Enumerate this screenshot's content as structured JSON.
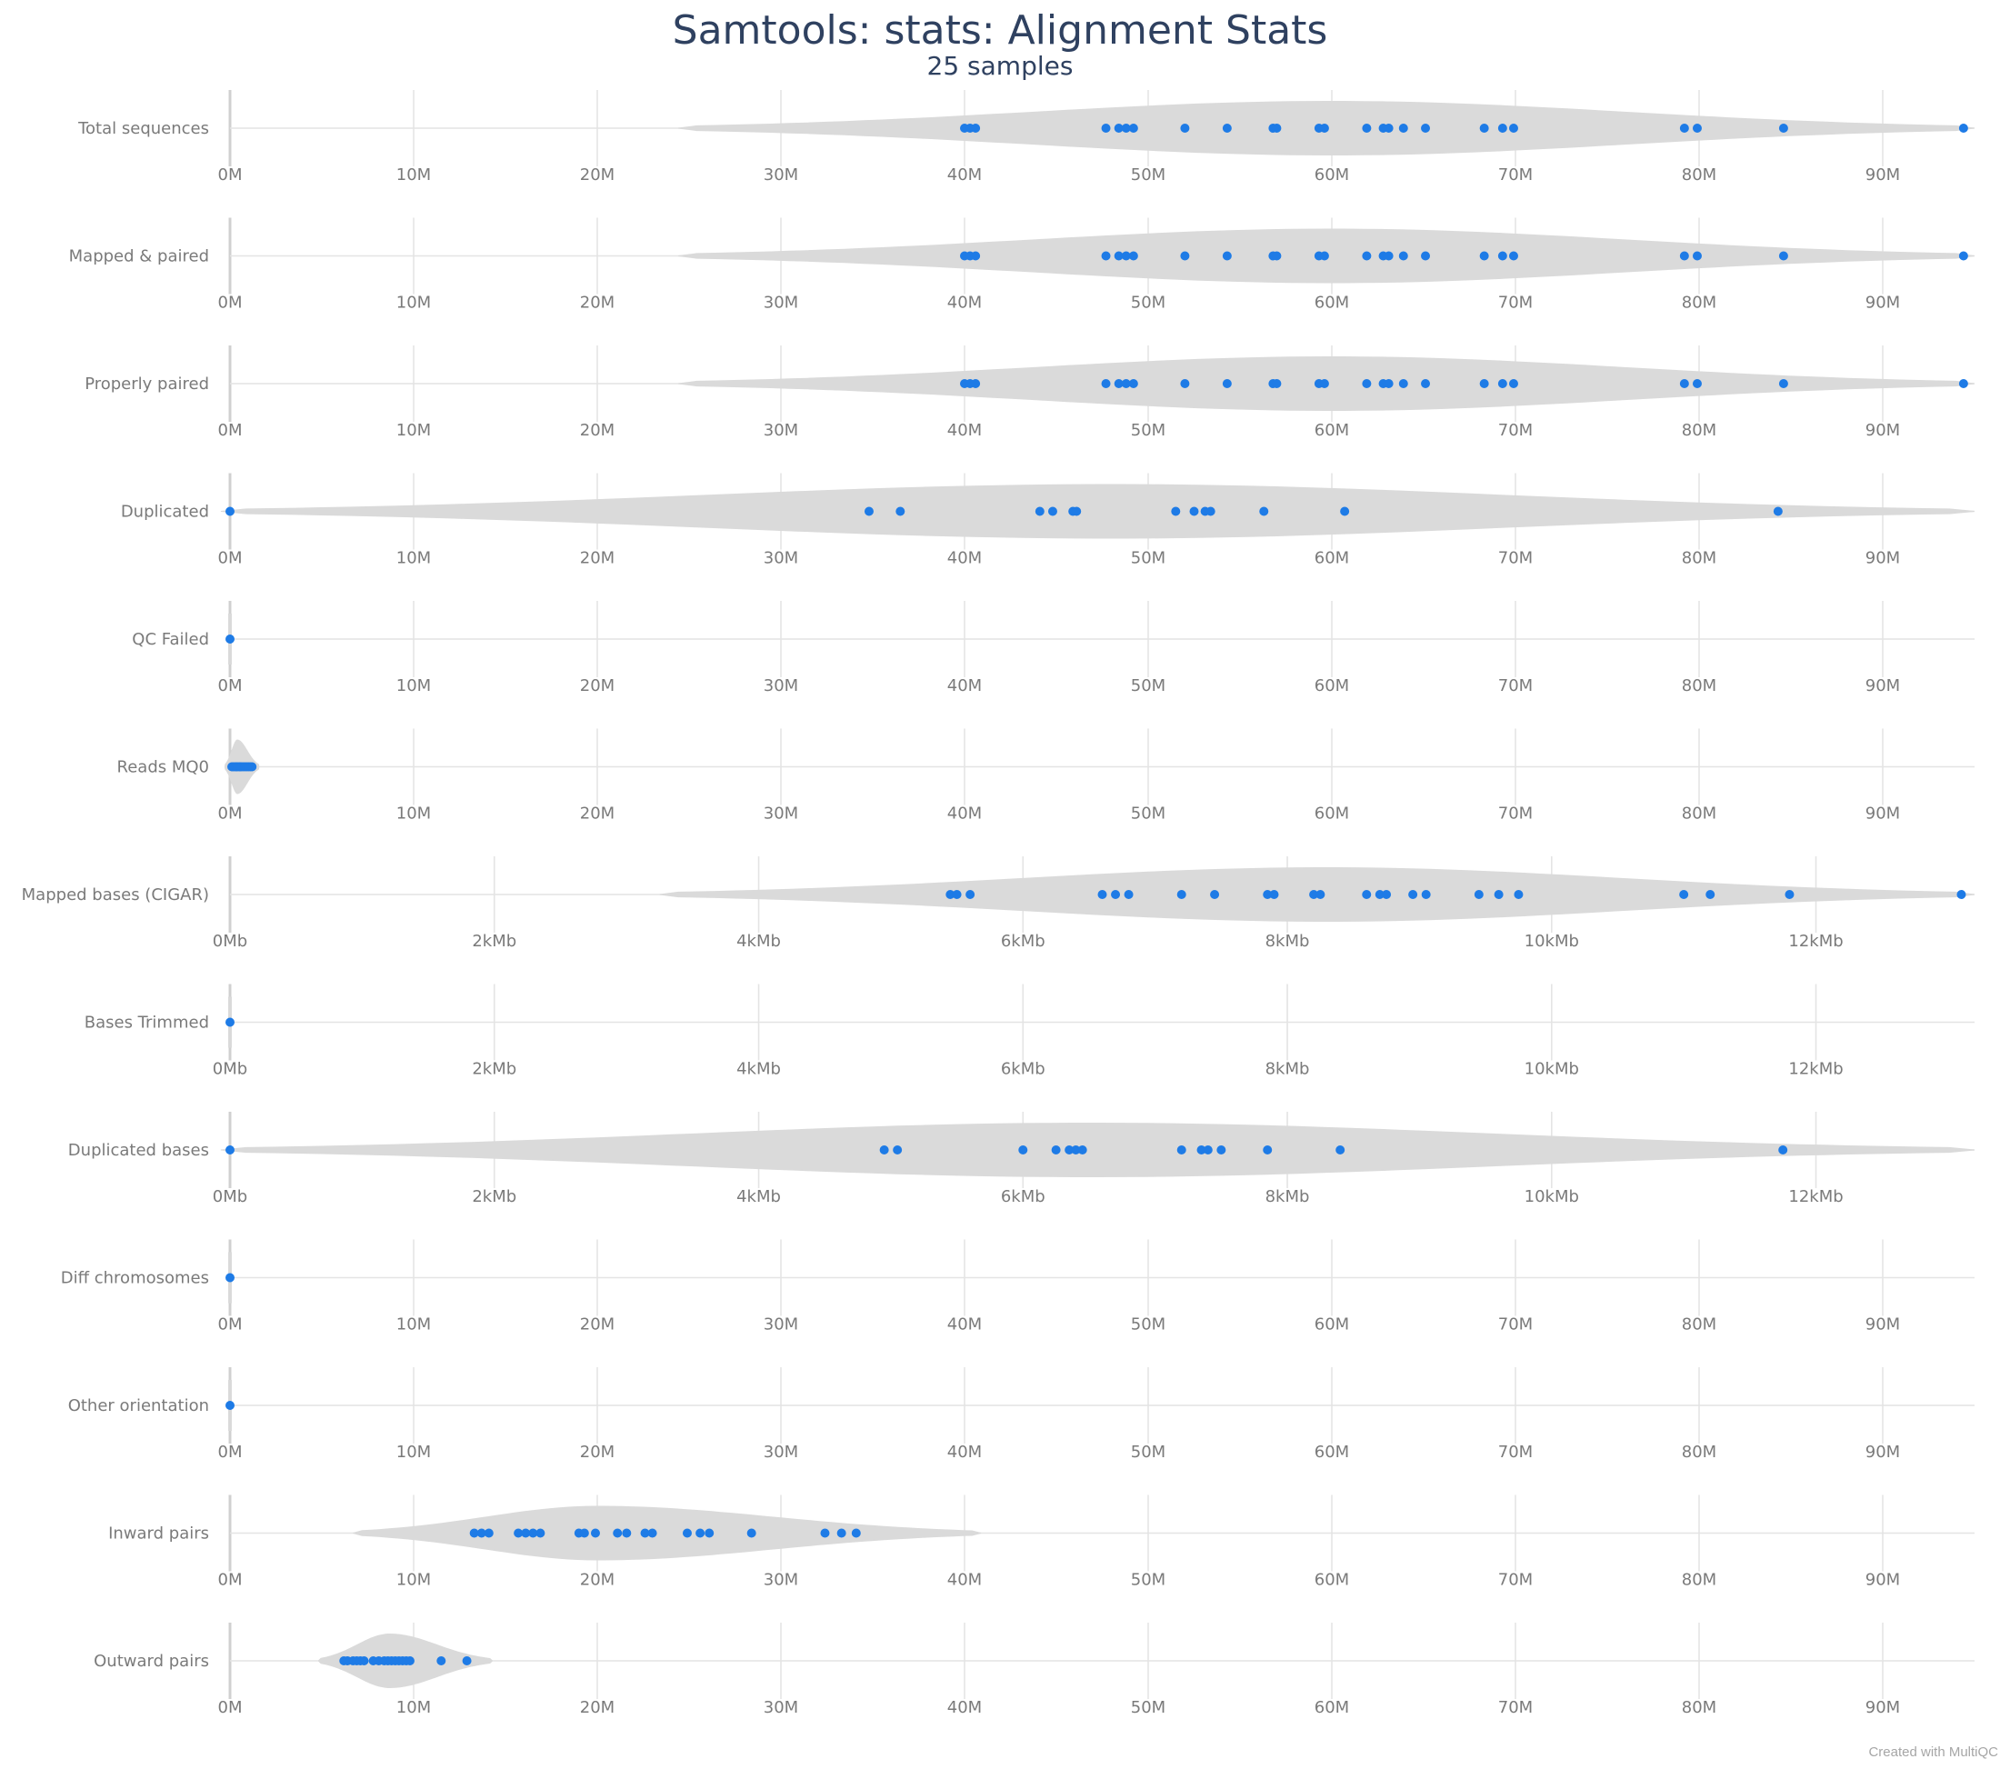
{
  "title": "Samtools: stats: Alignment Stats",
  "subtitle": "25 samples",
  "credit": "Created with MultiQC",
  "colors": {
    "violin": "#dadada",
    "point": "#1e7be6",
    "grid": "#e4e4e4",
    "text": "#7a7a7a",
    "title": "#2f4160"
  },
  "chart_data": {
    "type": "violin",
    "grid": true,
    "panels": [
      {
        "label": "Total sequences",
        "unit": "M",
        "xlim": [
          0,
          95
        ],
        "ticks": [
          "0M",
          "10M",
          "20M",
          "30M",
          "40M",
          "50M",
          "60M",
          "70M",
          "80M",
          "90M"
        ],
        "tick_values": [
          0,
          10,
          20,
          30,
          40,
          50,
          60,
          70,
          80,
          90
        ],
        "violin_range": [
          24.4,
          95
        ],
        "violin_peak": 60,
        "values": [
          40.0,
          40.3,
          40.6,
          47.7,
          48.4,
          48.8,
          49.2,
          52.0,
          54.3,
          56.8,
          57.0,
          59.3,
          59.6,
          61.9,
          62.8,
          63.1,
          63.9,
          65.1,
          68.3,
          69.3,
          69.9,
          79.2,
          79.9,
          84.6,
          94.4
        ]
      },
      {
        "label": "Mapped & paired",
        "unit": "M",
        "xlim": [
          0,
          95
        ],
        "ticks": [
          "0M",
          "10M",
          "20M",
          "30M",
          "40M",
          "50M",
          "60M",
          "70M",
          "80M",
          "90M"
        ],
        "tick_values": [
          0,
          10,
          20,
          30,
          40,
          50,
          60,
          70,
          80,
          90
        ],
        "violin_range": [
          24.4,
          95
        ],
        "violin_peak": 60,
        "values": [
          40.0,
          40.3,
          40.6,
          47.7,
          48.4,
          48.8,
          49.2,
          52.0,
          54.3,
          56.8,
          57.0,
          59.3,
          59.6,
          61.9,
          62.8,
          63.1,
          63.9,
          65.1,
          68.3,
          69.3,
          69.9,
          79.2,
          79.9,
          84.6,
          94.4
        ]
      },
      {
        "label": "Properly paired",
        "unit": "M",
        "xlim": [
          0,
          95
        ],
        "ticks": [
          "0M",
          "10M",
          "20M",
          "30M",
          "40M",
          "50M",
          "60M",
          "70M",
          "80M",
          "90M"
        ],
        "tick_values": [
          0,
          10,
          20,
          30,
          40,
          50,
          60,
          70,
          80,
          90
        ],
        "violin_range": [
          24.4,
          95
        ],
        "violin_peak": 60,
        "values": [
          40.0,
          40.3,
          40.6,
          47.7,
          48.4,
          48.8,
          49.2,
          52.0,
          54.3,
          56.8,
          57.0,
          59.3,
          59.6,
          61.9,
          62.8,
          63.1,
          63.9,
          65.1,
          68.3,
          69.3,
          69.9,
          79.2,
          79.9,
          84.6,
          94.4
        ]
      },
      {
        "label": "Duplicated",
        "unit": "M",
        "xlim": [
          0,
          95
        ],
        "ticks": [
          "0M",
          "10M",
          "20M",
          "30M",
          "40M",
          "50M",
          "60M",
          "70M",
          "80M",
          "90M"
        ],
        "tick_values": [
          0,
          10,
          20,
          30,
          40,
          50,
          60,
          70,
          80,
          90
        ],
        "violin_range": [
          -0.5,
          95
        ],
        "violin_peak": 48,
        "values": [
          0.0,
          34.8,
          36.5,
          44.1,
          44.8,
          45.9,
          46.1,
          51.5,
          52.5,
          53.1,
          53.4,
          56.3,
          60.7,
          84.3
        ]
      },
      {
        "label": "QC Failed",
        "unit": "M",
        "xlim": [
          0,
          95
        ],
        "ticks": [
          "0M",
          "10M",
          "20M",
          "30M",
          "40M",
          "50M",
          "60M",
          "70M",
          "80M",
          "90M"
        ],
        "tick_values": [
          0,
          10,
          20,
          30,
          40,
          50,
          60,
          70,
          80,
          90
        ],
        "violin_range": [
          0,
          0
        ],
        "violin_peak": 0,
        "values": [
          0.0
        ]
      },
      {
        "label": "Reads MQ0",
        "unit": "M",
        "xlim": [
          0,
          95
        ],
        "ticks": [
          "0M",
          "10M",
          "20M",
          "30M",
          "40M",
          "50M",
          "60M",
          "70M",
          "80M",
          "90M"
        ],
        "tick_values": [
          0,
          10,
          20,
          30,
          40,
          50,
          60,
          70,
          80,
          90
        ],
        "violin_range": [
          -0.3,
          1.6
        ],
        "violin_peak": 0.4,
        "values": [
          0.1,
          0.2,
          0.3,
          0.35,
          0.4,
          0.5,
          0.55,
          0.6,
          0.7,
          0.8,
          0.9,
          1.0,
          1.1,
          1.2
        ]
      },
      {
        "label": "Mapped bases (CIGAR)",
        "unit": "Mb",
        "xlim": [
          0,
          13.2
        ],
        "ticks": [
          "0Mb",
          "2kMb",
          "4kMb",
          "6kMb",
          "8kMb",
          "10kMb",
          "12kMb"
        ],
        "tick_values": [
          0,
          2,
          4,
          6,
          8,
          10,
          12
        ],
        "violin_range": [
          3.25,
          13.2
        ],
        "violin_peak": 8.3,
        "values": [
          5.45,
          5.5,
          5.6,
          6.6,
          6.7,
          6.8,
          7.2,
          7.45,
          7.85,
          7.9,
          8.2,
          8.25,
          8.6,
          8.7,
          8.75,
          8.95,
          9.05,
          9.45,
          9.6,
          9.75,
          11.0,
          11.2,
          11.8,
          13.1
        ]
      },
      {
        "label": "Bases Trimmed",
        "unit": "Mb",
        "xlim": [
          0,
          13.2
        ],
        "ticks": [
          "0Mb",
          "2kMb",
          "4kMb",
          "6kMb",
          "8kMb",
          "10kMb",
          "12kMb"
        ],
        "tick_values": [
          0,
          2,
          4,
          6,
          8,
          10,
          12
        ],
        "violin_range": [
          0,
          0
        ],
        "violin_peak": 0,
        "values": [
          0.0
        ]
      },
      {
        "label": "Duplicated bases",
        "unit": "Mb",
        "xlim": [
          0,
          13.2
        ],
        "ticks": [
          "0Mb",
          "2kMb",
          "4kMb",
          "6kMb",
          "8kMb",
          "10kMb",
          "12kMb"
        ],
        "tick_values": [
          0,
          2,
          4,
          6,
          8,
          10,
          12
        ],
        "violin_range": [
          -0.07,
          13.2
        ],
        "violin_peak": 6.5,
        "values": [
          0.0,
          4.95,
          5.05,
          6.0,
          6.25,
          6.35,
          6.4,
          6.45,
          7.2,
          7.35,
          7.4,
          7.5,
          7.85,
          8.4,
          11.75
        ]
      },
      {
        "label": "Diff chromosomes",
        "unit": "M",
        "xlim": [
          0,
          95
        ],
        "ticks": [
          "0M",
          "10M",
          "20M",
          "30M",
          "40M",
          "50M",
          "60M",
          "70M",
          "80M",
          "90M"
        ],
        "tick_values": [
          0,
          10,
          20,
          30,
          40,
          50,
          60,
          70,
          80,
          90
        ],
        "violin_range": [
          0,
          0
        ],
        "violin_peak": 0,
        "values": [
          0.0
        ]
      },
      {
        "label": "Other orientation",
        "unit": "M",
        "xlim": [
          0,
          95
        ],
        "ticks": [
          "0M",
          "10M",
          "20M",
          "30M",
          "40M",
          "50M",
          "60M",
          "70M",
          "80M",
          "90M"
        ],
        "tick_values": [
          0,
          10,
          20,
          30,
          40,
          50,
          60,
          70,
          80,
          90
        ],
        "violin_range": [
          0,
          0
        ],
        "violin_peak": 0,
        "values": [
          0.0
        ]
      },
      {
        "label": "Inward pairs",
        "unit": "M",
        "xlim": [
          0,
          95
        ],
        "ticks": [
          "0M",
          "10M",
          "20M",
          "30M",
          "40M",
          "50M",
          "60M",
          "70M",
          "80M",
          "90M"
        ],
        "tick_values": [
          0,
          10,
          20,
          30,
          40,
          50,
          60,
          70,
          80,
          90
        ],
        "violin_range": [
          6.7,
          40.9
        ],
        "violin_peak": 20,
        "values": [
          13.3,
          13.7,
          14.1,
          15.7,
          16.1,
          16.5,
          16.9,
          19.0,
          19.3,
          19.9,
          21.1,
          21.6,
          22.6,
          23.0,
          24.9,
          25.6,
          26.1,
          28.4,
          32.4,
          33.3,
          34.1
        ]
      },
      {
        "label": "Outward pairs",
        "unit": "M",
        "xlim": [
          0,
          95
        ],
        "ticks": [
          "0M",
          "10M",
          "20M",
          "30M",
          "40M",
          "50M",
          "60M",
          "70M",
          "80M",
          "90M"
        ],
        "tick_values": [
          0,
          10,
          20,
          30,
          40,
          50,
          60,
          70,
          80,
          90
        ],
        "violin_range": [
          4.8,
          14.3
        ],
        "violin_peak": 8.7,
        "values": [
          6.2,
          6.4,
          6.7,
          6.9,
          7.1,
          7.3,
          7.8,
          8.1,
          8.4,
          8.6,
          8.8,
          9.0,
          9.2,
          9.4,
          9.6,
          9.8,
          11.5,
          12.9
        ]
      }
    ]
  }
}
